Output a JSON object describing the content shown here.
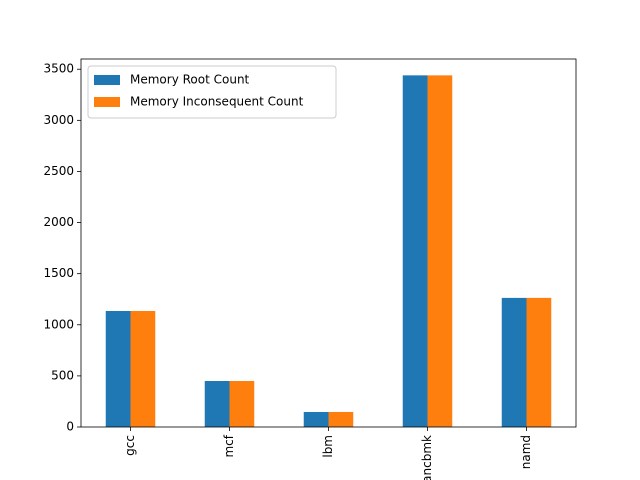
{
  "chart_data": {
    "type": "bar",
    "categories": [
      "gcc",
      "mcf",
      "lbm",
      "xalancbmk",
      "namd"
    ],
    "series": [
      {
        "name": "Memory Root Count",
        "color": "#1f77b4",
        "values": [
          1135,
          450,
          147,
          3440,
          1263
        ]
      },
      {
        "name": "Memory Inconsequent Count",
        "color": "#ff7f0e",
        "values": [
          1135,
          450,
          147,
          3440,
          1263
        ]
      }
    ],
    "ylim": [
      0,
      3600
    ],
    "yticks": [
      0,
      500,
      1000,
      1500,
      2000,
      2500,
      3000,
      3500
    ],
    "grid": false,
    "legend": "upper-left"
  }
}
